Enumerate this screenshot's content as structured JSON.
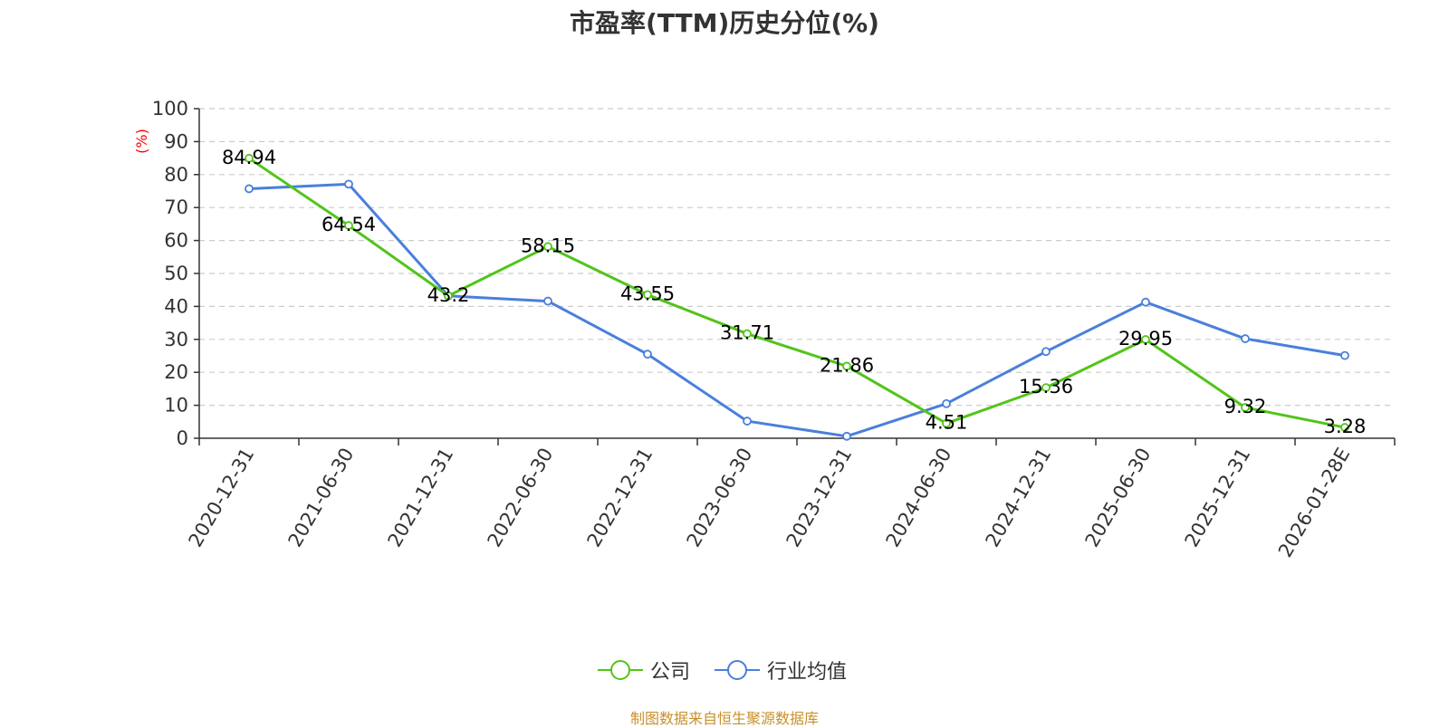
{
  "title": "市盈率(TTM)历史分位(%)",
  "source": "制图数据来自恒生聚源数据库",
  "colors": {
    "company": "#52c41a",
    "industry": "#4a7fdc",
    "axis": "#333333",
    "grid": "#cccccc",
    "unit": "#ff0000"
  },
  "chart_data": {
    "type": "line",
    "title": "市盈率(TTM)历史分位(%)",
    "ylabel": "(%)",
    "xlabel": "",
    "ylim": [
      0,
      100
    ],
    "yticks": [
      0,
      10,
      20,
      30,
      40,
      50,
      60,
      70,
      80,
      90,
      100
    ],
    "grid": true,
    "legend_position": "bottom",
    "categories": [
      "2020-12-31",
      "2021-06-30",
      "2021-12-31",
      "2022-06-30",
      "2022-12-31",
      "2023-06-30",
      "2023-12-31",
      "2024-06-30",
      "2024-12-31",
      "2025-06-30",
      "2025-12-31",
      "2026-01-28E"
    ],
    "series": [
      {
        "name": "公司",
        "values": [
          84.94,
          64.54,
          43.2,
          58.15,
          43.55,
          31.71,
          21.86,
          4.51,
          15.36,
          29.95,
          9.32,
          3.28
        ],
        "labels": [
          "84.94",
          "64.54",
          "43.2",
          "58.15",
          "43.55",
          "31.71",
          "21.86",
          "4.51",
          "15.36",
          "29.95",
          "9.32",
          "3.28"
        ]
      },
      {
        "name": "行业均值",
        "values": [
          75.7,
          77.1,
          43.2,
          41.6,
          25.5,
          5.2,
          0.6,
          10.5,
          26.3,
          41.3,
          30.2,
          25.1
        ]
      }
    ]
  }
}
